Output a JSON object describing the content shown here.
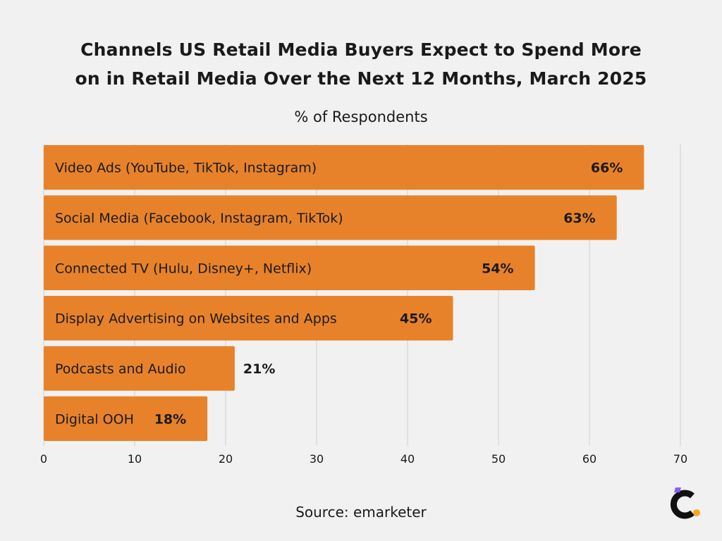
{
  "title_line1": "Channels US Retail Media Buyers Expect to Spend More",
  "title_line2": "on in Retail Media Over the Next 12 Months, March 2025",
  "subtitle": "% of Respondents",
  "source": "Source: emarketer",
  "colors": {
    "bar": "#e8822a",
    "background": "#f1f1f1",
    "grid": "#cfcfcf",
    "logo_purple": "#8b5cf6",
    "logo_orange": "#f5a623"
  },
  "logo_icon": "c-brand-logo-icon",
  "chart_data": {
    "type": "bar",
    "orientation": "horizontal",
    "title": "Channels US Retail Media Buyers Expect to Spend More on in Retail Media Over the Next 12 Months, March 2025",
    "subtitle": "% of Respondents",
    "categories": [
      "Video Ads (YouTube, TikTok, Instagram)",
      "Social Media (Facebook, Instagram, TikTok)",
      "Connected TV (Hulu, Disney+, Netflix)",
      "Display Advertising on Websites and Apps",
      "Podcasts and Audio",
      "Digital OOH"
    ],
    "values": [
      66,
      63,
      54,
      45,
      21,
      18
    ],
    "value_labels": [
      "66%",
      "63%",
      "54%",
      "45%",
      "21%",
      "18%"
    ],
    "xlim": [
      0,
      70
    ],
    "xticks": [
      0,
      10,
      20,
      30,
      40,
      50,
      60,
      70
    ],
    "grid": true,
    "legend": "none"
  }
}
